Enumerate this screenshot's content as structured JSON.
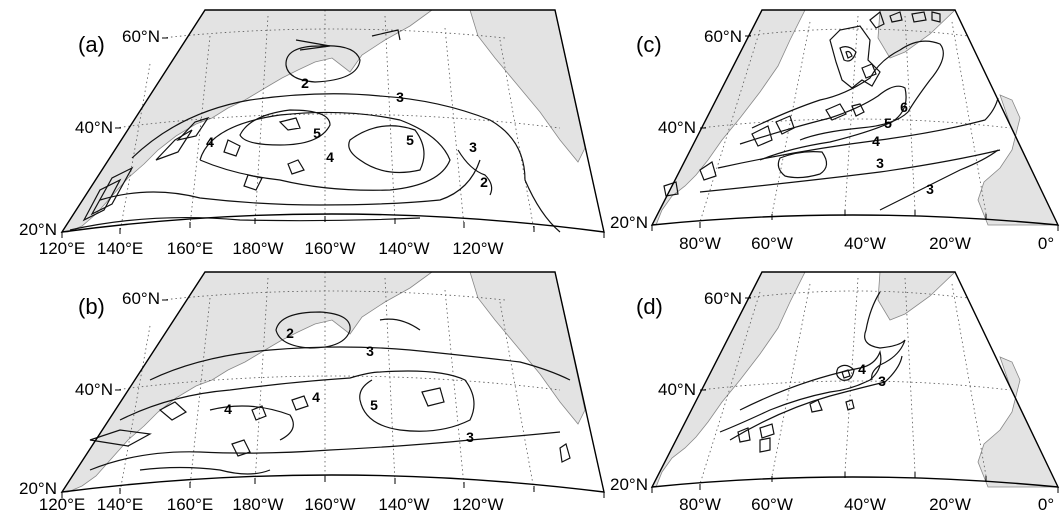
{
  "panels": [
    {
      "id": "a",
      "label": "(a)",
      "lat_labels": [
        "60°N",
        "40°N",
        "20°N"
      ],
      "lon_labels": [
        "120°E",
        "140°E",
        "160°E",
        "180°W",
        "160°W",
        "140°W",
        "120°W"
      ],
      "contour_labels": [
        "2",
        "3",
        "5",
        "4",
        "4",
        "5",
        "3",
        "2"
      ]
    },
    {
      "id": "b",
      "label": "(b)",
      "lat_labels": [
        "60°N",
        "40°N",
        "20°N"
      ],
      "lon_labels": [
        "120°E",
        "140°E",
        "160°E",
        "180°W",
        "160°W",
        "140°W",
        "120°W"
      ],
      "contour_labels": [
        "2",
        "3",
        "4",
        "4",
        "5",
        "3"
      ]
    },
    {
      "id": "c",
      "label": "(c)",
      "lat_labels": [
        "60°N",
        "40°N",
        "20°N"
      ],
      "lon_labels": [
        "80°W",
        "60°W",
        "40°W",
        "20°W",
        "0°"
      ],
      "contour_labels": [
        "6",
        "5",
        "4",
        "3",
        "3"
      ]
    },
    {
      "id": "d",
      "label": "(d)",
      "lat_labels": [
        "60°N",
        "40°N",
        "20°N"
      ],
      "lon_labels": [
        "80°W",
        "60°W",
        "40°W",
        "20°W",
        "0°"
      ],
      "contour_labels": [
        "4",
        "3"
      ]
    }
  ],
  "colors": {
    "land": "#e3e3e3",
    "contour": "#111111",
    "frame": "#000000",
    "grid": "#555555"
  }
}
